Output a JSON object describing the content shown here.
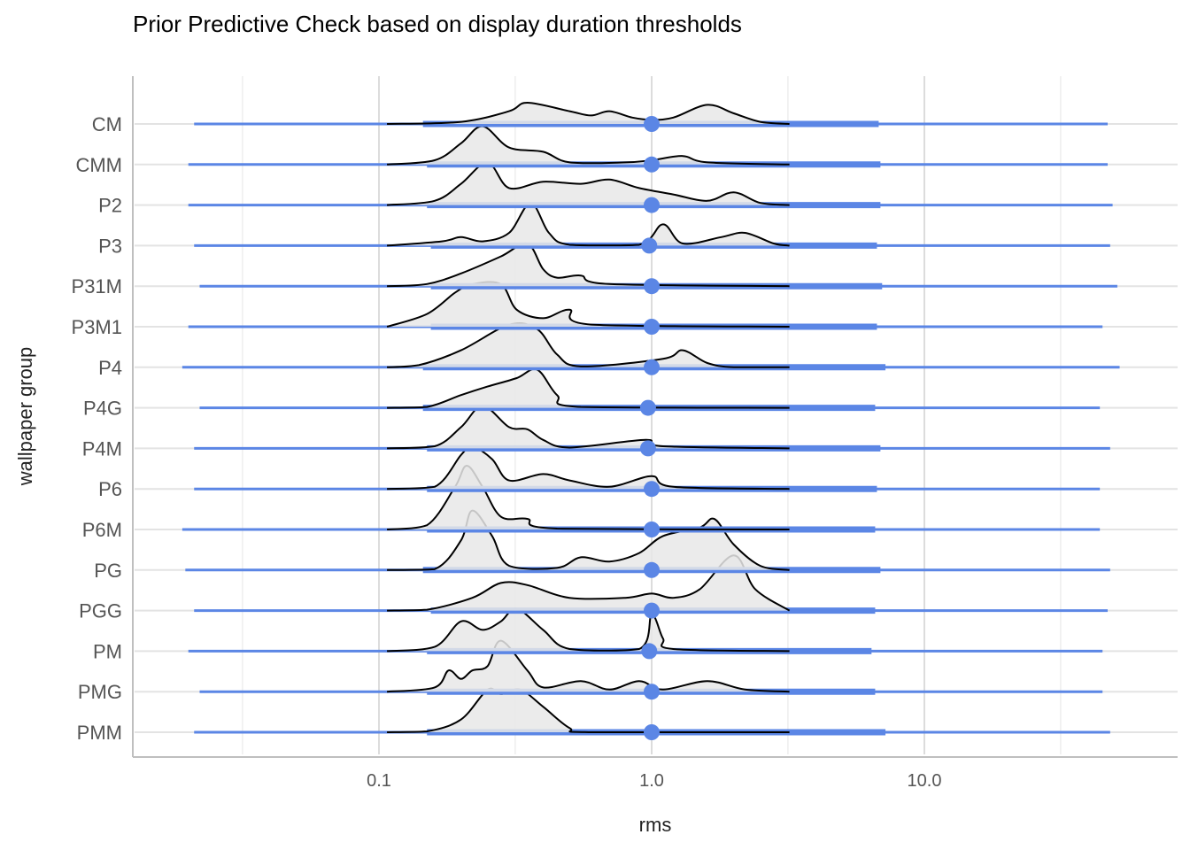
{
  "chart_data": {
    "type": "ridgeline",
    "title": "Prior Predictive Check based on display duration thresholds",
    "xlabel": "rms",
    "ylabel": "wallpaper group",
    "x_scale": "log10",
    "xlim": [
      0.015,
      65
    ],
    "x_ticks": [
      0.1,
      1.0,
      10.0
    ],
    "x_tick_labels": [
      "0.1",
      "1.0",
      "10.0"
    ],
    "x_minor_gridlines": [
      0.0316,
      0.316,
      3.16,
      31.6
    ],
    "grid": true,
    "point_color": "#5B86E5",
    "density_fill": "#E8E8E8",
    "density_line": "#000000",
    "groups": [
      {
        "label": "PMM",
        "point": 1.0,
        "interval_66": [
          0.15,
          7.2
        ],
        "interval_95": [
          0.021,
          48
        ],
        "density": [
          [
            0.107,
            0
          ],
          [
            0.15,
            0.02
          ],
          [
            0.2,
            0.3
          ],
          [
            0.25,
            1.0
          ],
          [
            0.28,
            0.9
          ],
          [
            0.33,
            1.0
          ],
          [
            0.4,
            0.6
          ],
          [
            0.5,
            0.1
          ],
          [
            0.6,
            0
          ],
          [
            3.2,
            0
          ]
        ]
      },
      {
        "label": "PMG",
        "point": 1.0,
        "interval_66": [
          0.15,
          6.6
        ],
        "interval_95": [
          0.022,
          45
        ],
        "density": [
          [
            0.107,
            0
          ],
          [
            0.16,
            0.1
          ],
          [
            0.18,
            0.5
          ],
          [
            0.2,
            0.3
          ],
          [
            0.22,
            0.5
          ],
          [
            0.25,
            0.6
          ],
          [
            0.28,
            1.2
          ],
          [
            0.35,
            0.5
          ],
          [
            0.4,
            0.1
          ],
          [
            0.55,
            0.25
          ],
          [
            0.7,
            0.05
          ],
          [
            0.9,
            0.25
          ],
          [
            1.1,
            0.05
          ],
          [
            1.6,
            0.25
          ],
          [
            2.2,
            0.05
          ],
          [
            3.2,
            0
          ]
        ]
      },
      {
        "label": "PM",
        "point": 0.98,
        "interval_66": [
          0.15,
          6.4
        ],
        "interval_95": [
          0.02,
          45
        ],
        "density": [
          [
            0.107,
            0
          ],
          [
            0.16,
            0.1
          ],
          [
            0.2,
            0.7
          ],
          [
            0.24,
            0.5
          ],
          [
            0.28,
            0.7
          ],
          [
            0.32,
            1.0
          ],
          [
            0.4,
            0.5
          ],
          [
            0.5,
            0.05
          ],
          [
            0.9,
            0.05
          ],
          [
            1.0,
            0.85
          ],
          [
            1.1,
            0.3
          ],
          [
            1.2,
            0.05
          ],
          [
            3.2,
            0
          ]
        ]
      },
      {
        "label": "PGG",
        "point": 1.0,
        "interval_66": [
          0.155,
          6.6
        ],
        "interval_95": [
          0.021,
          47
        ],
        "density": [
          [
            0.107,
            0
          ],
          [
            0.15,
            0.02
          ],
          [
            0.22,
            0.3
          ],
          [
            0.28,
            0.65
          ],
          [
            0.35,
            0.6
          ],
          [
            0.5,
            0.3
          ],
          [
            0.8,
            0.3
          ],
          [
            1.0,
            0.4
          ],
          [
            1.2,
            0.3
          ],
          [
            1.5,
            0.5
          ],
          [
            2.0,
            1.3
          ],
          [
            2.4,
            0.5
          ],
          [
            3.2,
            0
          ]
        ]
      },
      {
        "label": "PG",
        "point": 1.0,
        "interval_66": [
          0.145,
          6.9
        ],
        "interval_95": [
          0.0195,
          48
        ],
        "density": [
          [
            0.107,
            0
          ],
          [
            0.16,
            0.02
          ],
          [
            0.2,
            0.7
          ],
          [
            0.22,
            1.4
          ],
          [
            0.26,
            0.8
          ],
          [
            0.3,
            0.1
          ],
          [
            0.45,
            0.05
          ],
          [
            0.55,
            0.3
          ],
          [
            0.7,
            0.2
          ],
          [
            0.9,
            0.4
          ],
          [
            1.1,
            0.8
          ],
          [
            1.5,
            1.0
          ],
          [
            1.7,
            1.2
          ],
          [
            2.0,
            0.6
          ],
          [
            2.5,
            0.1
          ],
          [
            3.2,
            0
          ]
        ]
      },
      {
        "label": "P6M",
        "point": 1.0,
        "interval_66": [
          0.15,
          6.6
        ],
        "interval_95": [
          0.019,
          44
        ],
        "density": [
          [
            0.107,
            0
          ],
          [
            0.15,
            0.1
          ],
          [
            0.19,
            1.0
          ],
          [
            0.21,
            1.5
          ],
          [
            0.24,
            1.0
          ],
          [
            0.28,
            0.3
          ],
          [
            0.35,
            0.25
          ],
          [
            0.45,
            0.02
          ],
          [
            3.2,
            0
          ]
        ]
      },
      {
        "label": "P6",
        "point": 1.0,
        "interval_66": [
          0.15,
          6.7
        ],
        "interval_95": [
          0.021,
          44
        ],
        "density": [
          [
            0.107,
            0
          ],
          [
            0.16,
            0.05
          ],
          [
            0.2,
            0.8
          ],
          [
            0.22,
            1.0
          ],
          [
            0.26,
            0.7
          ],
          [
            0.3,
            0.2
          ],
          [
            0.4,
            0.35
          ],
          [
            0.5,
            0.2
          ],
          [
            0.7,
            0.05
          ],
          [
            1.0,
            0.3
          ],
          [
            1.2,
            0.05
          ],
          [
            3.2,
            0
          ]
        ]
      },
      {
        "label": "P4M",
        "point": 0.97,
        "interval_66": [
          0.15,
          6.9
        ],
        "interval_95": [
          0.021,
          48
        ],
        "density": [
          [
            0.107,
            0
          ],
          [
            0.16,
            0.05
          ],
          [
            0.2,
            0.5
          ],
          [
            0.24,
            1.0
          ],
          [
            0.3,
            0.5
          ],
          [
            0.35,
            0.45
          ],
          [
            0.4,
            0.2
          ],
          [
            0.5,
            0.02
          ],
          [
            0.95,
            0.2
          ],
          [
            1.1,
            0.05
          ],
          [
            3.2,
            0
          ]
        ]
      },
      {
        "label": "P4G",
        "point": 0.97,
        "interval_66": [
          0.145,
          6.6
        ],
        "interval_95": [
          0.022,
          44
        ],
        "density": [
          [
            0.107,
            0
          ],
          [
            0.15,
            0.02
          ],
          [
            0.2,
            0.3
          ],
          [
            0.25,
            0.5
          ],
          [
            0.32,
            0.7
          ],
          [
            0.38,
            0.9
          ],
          [
            0.45,
            0.3
          ],
          [
            0.55,
            0.02
          ],
          [
            3.2,
            0
          ]
        ]
      },
      {
        "label": "P4",
        "point": 1.0,
        "interval_66": [
          0.145,
          7.2
        ],
        "interval_95": [
          0.019,
          52
        ],
        "density": [
          [
            0.107,
            0
          ],
          [
            0.14,
            0.05
          ],
          [
            0.2,
            0.4
          ],
          [
            0.3,
            1.0
          ],
          [
            0.38,
            0.9
          ],
          [
            0.45,
            0.3
          ],
          [
            0.55,
            0.02
          ],
          [
            1.1,
            0.2
          ],
          [
            1.3,
            0.4
          ],
          [
            1.6,
            0.1
          ],
          [
            2.0,
            0
          ],
          [
            3.2,
            0
          ]
        ]
      },
      {
        "label": "P3M1",
        "point": 1.0,
        "interval_66": [
          0.155,
          6.7
        ],
        "interval_95": [
          0.02,
          45
        ],
        "density": [
          [
            0.107,
            0
          ],
          [
            0.15,
            0.3
          ],
          [
            0.19,
            0.8
          ],
          [
            0.22,
            1.0
          ],
          [
            0.28,
            1.0
          ],
          [
            0.32,
            0.4
          ],
          [
            0.4,
            0.2
          ],
          [
            0.5,
            0.4
          ],
          [
            0.6,
            0.05
          ],
          [
            3.2,
            0
          ]
        ]
      },
      {
        "label": "P31M",
        "point": 1.0,
        "interval_66": [
          0.155,
          7.0
        ],
        "interval_95": [
          0.022,
          51
        ],
        "density": [
          [
            0.107,
            0
          ],
          [
            0.15,
            0.05
          ],
          [
            0.2,
            0.3
          ],
          [
            0.28,
            0.7
          ],
          [
            0.35,
            1.0
          ],
          [
            0.4,
            0.4
          ],
          [
            0.45,
            0.2
          ],
          [
            0.55,
            0.25
          ],
          [
            0.7,
            0.05
          ],
          [
            3.2,
            0
          ]
        ]
      },
      {
        "label": "P3",
        "point": 0.98,
        "interval_66": [
          0.155,
          6.7
        ],
        "interval_95": [
          0.021,
          48
        ],
        "density": [
          [
            0.107,
            0
          ],
          [
            0.17,
            0.1
          ],
          [
            0.2,
            0.2
          ],
          [
            0.24,
            0.1
          ],
          [
            0.3,
            0.3
          ],
          [
            0.36,
            1.0
          ],
          [
            0.42,
            0.3
          ],
          [
            0.5,
            0.02
          ],
          [
            0.9,
            0.02
          ],
          [
            1.1,
            0.5
          ],
          [
            1.3,
            0.05
          ],
          [
            1.8,
            0.2
          ],
          [
            2.2,
            0.3
          ],
          [
            2.8,
            0.05
          ],
          [
            3.2,
            0
          ]
        ]
      },
      {
        "label": "P2",
        "point": 1.0,
        "interval_66": [
          0.15,
          6.9
        ],
        "interval_95": [
          0.02,
          49
        ],
        "density": [
          [
            0.107,
            0
          ],
          [
            0.16,
            0.1
          ],
          [
            0.2,
            0.5
          ],
          [
            0.25,
            1.0
          ],
          [
            0.3,
            0.4
          ],
          [
            0.4,
            0.55
          ],
          [
            0.55,
            0.5
          ],
          [
            0.7,
            0.6
          ],
          [
            0.9,
            0.4
          ],
          [
            1.2,
            0.25
          ],
          [
            1.6,
            0.1
          ],
          [
            2.0,
            0.3
          ],
          [
            2.5,
            0.05
          ],
          [
            3.2,
            0
          ]
        ]
      },
      {
        "label": "CMM",
        "point": 1.0,
        "interval_66": [
          0.15,
          6.9
        ],
        "interval_95": [
          0.02,
          47
        ],
        "density": [
          [
            0.107,
            0
          ],
          [
            0.16,
            0.1
          ],
          [
            0.2,
            0.5
          ],
          [
            0.24,
            0.9
          ],
          [
            0.3,
            0.4
          ],
          [
            0.4,
            0.3
          ],
          [
            0.5,
            0.05
          ],
          [
            0.8,
            0.05
          ],
          [
            1.0,
            0.1
          ],
          [
            1.3,
            0.2
          ],
          [
            1.6,
            0.05
          ],
          [
            3.2,
            0
          ]
        ]
      },
      {
        "label": "CM",
        "point": 1.0,
        "interval_66": [
          0.145,
          6.8
        ],
        "interval_95": [
          0.021,
          47
        ],
        "density": [
          [
            0.107,
            0
          ],
          [
            0.2,
            0.05
          ],
          [
            0.3,
            0.3
          ],
          [
            0.35,
            0.5
          ],
          [
            0.5,
            0.3
          ],
          [
            0.6,
            0.2
          ],
          [
            0.7,
            0.3
          ],
          [
            0.85,
            0.15
          ],
          [
            1.0,
            0.1
          ],
          [
            1.2,
            0.15
          ],
          [
            1.6,
            0.45
          ],
          [
            2.0,
            0.25
          ],
          [
            2.5,
            0.05
          ],
          [
            3.2,
            0
          ]
        ]
      }
    ]
  }
}
